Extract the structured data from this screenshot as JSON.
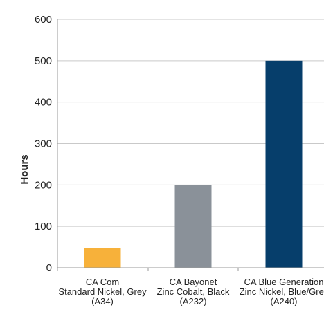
{
  "chart_data": {
    "type": "bar",
    "ylabel": "Hours",
    "xlabel": "",
    "title": "",
    "ylim": [
      0,
      600
    ],
    "yticks": [
      0,
      100,
      200,
      300,
      400,
      500,
      600
    ],
    "grid": true,
    "categories": [
      [
        "CA Com",
        "Standard Nickel, Grey",
        "(A34)"
      ],
      [
        "CA Bayonet",
        "Zinc Cobalt, Black",
        "(A232)"
      ],
      [
        "CA Blue Generation",
        "Zinc Nickel, Blue/Grey",
        "(A240)"
      ]
    ],
    "values": [
      48,
      200,
      500
    ],
    "colors": [
      "#f7b13a",
      "#8a9199",
      "#063e6b"
    ],
    "gridline_color": "#c9c9c9",
    "axis_color": "#9a9a9a"
  }
}
